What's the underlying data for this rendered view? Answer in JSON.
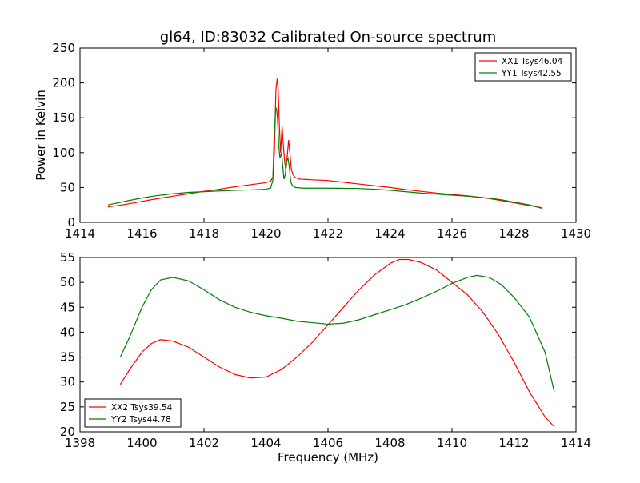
{
  "chart_data": [
    {
      "type": "line",
      "title": "gl64, ID:83032 Calibrated On-source spectrum",
      "xlabel": "",
      "ylabel": "Power in Kelvin",
      "xlim": [
        1414,
        1430
      ],
      "ylim": [
        0,
        250
      ],
      "xticks": [
        "1414",
        "1416",
        "1418",
        "1420",
        "1422",
        "1424",
        "1426",
        "1428",
        "1430"
      ],
      "yticks": [
        "0",
        "50",
        "100",
        "150",
        "200",
        "250"
      ],
      "legend": "top-right",
      "series": [
        {
          "name": "XX1 Tsys46.04",
          "color": "#ff0000",
          "points": [
            [
              1414.9,
              22
            ],
            [
              1415.5,
              26
            ],
            [
              1416,
              30
            ],
            [
              1416.5,
              34
            ],
            [
              1417,
              37.5
            ],
            [
              1417.5,
              41
            ],
            [
              1418,
              44.5
            ],
            [
              1418.5,
              47.5
            ],
            [
              1419,
              51
            ],
            [
              1419.5,
              54
            ],
            [
              1420,
              57
            ],
            [
              1420.15,
              59
            ],
            [
              1420.22,
              65
            ],
            [
              1420.27,
              100
            ],
            [
              1420.32,
              190
            ],
            [
              1420.36,
              206
            ],
            [
              1420.39,
              195
            ],
            [
              1420.43,
              140
            ],
            [
              1420.47,
              100
            ],
            [
              1420.52,
              138
            ],
            [
              1420.56,
              110
            ],
            [
              1420.6,
              88
            ],
            [
              1420.64,
              75
            ],
            [
              1420.68,
              92
            ],
            [
              1420.73,
              118
            ],
            [
              1420.77,
              100
            ],
            [
              1420.82,
              75
            ],
            [
              1420.88,
              68
            ],
            [
              1420.95,
              64
            ],
            [
              1421.1,
              62
            ],
            [
              1421.5,
              61
            ],
            [
              1422,
              60
            ],
            [
              1422.5,
              57.5
            ],
            [
              1423,
              55
            ],
            [
              1423.5,
              52.5
            ],
            [
              1424,
              50
            ],
            [
              1424.5,
              47
            ],
            [
              1425,
              44.5
            ],
            [
              1425.5,
              42
            ],
            [
              1426,
              40
            ],
            [
              1426.5,
              38
            ],
            [
              1427,
              35.5
            ],
            [
              1427.5,
              32
            ],
            [
              1428,
              28
            ],
            [
              1428.5,
              24
            ],
            [
              1428.9,
              21
            ]
          ]
        },
        {
          "name": "YY1 Tsys42.55",
          "color": "#008000",
          "points": [
            [
              1414.9,
              25
            ],
            [
              1415.5,
              30.5
            ],
            [
              1416,
              35
            ],
            [
              1416.5,
              38.5
            ],
            [
              1417,
              41
            ],
            [
              1417.5,
              43
            ],
            [
              1418,
              44
            ],
            [
              1418.5,
              45
            ],
            [
              1419,
              46
            ],
            [
              1419.5,
              46.5
            ],
            [
              1420,
              47.5
            ],
            [
              1420.15,
              49
            ],
            [
              1420.22,
              60
            ],
            [
              1420.26,
              120
            ],
            [
              1420.31,
              160
            ],
            [
              1420.34,
              163
            ],
            [
              1420.37,
              150
            ],
            [
              1420.41,
              110
            ],
            [
              1420.45,
              92
            ],
            [
              1420.5,
              100
            ],
            [
              1420.54,
              80
            ],
            [
              1420.58,
              62
            ],
            [
              1420.62,
              68
            ],
            [
              1420.67,
              88
            ],
            [
              1420.71,
              92
            ],
            [
              1420.75,
              80
            ],
            [
              1420.8,
              58
            ],
            [
              1420.86,
              52
            ],
            [
              1420.95,
              50
            ],
            [
              1421.2,
              49
            ],
            [
              1422,
              49
            ],
            [
              1423,
              48.5
            ],
            [
              1423.5,
              47.5
            ],
            [
              1424,
              46
            ],
            [
              1424.5,
              44
            ],
            [
              1425,
              42
            ],
            [
              1425.5,
              40.5
            ],
            [
              1426,
              39
            ],
            [
              1426.5,
              37.5
            ],
            [
              1427,
              35.5
            ],
            [
              1427.5,
              33
            ],
            [
              1428,
              29
            ],
            [
              1428.5,
              25
            ],
            [
              1428.9,
              20
            ]
          ]
        }
      ]
    },
    {
      "type": "line",
      "title": "",
      "xlabel": "Frequency (MHz)",
      "ylabel": "",
      "xlim": [
        1398,
        1414
      ],
      "ylim": [
        20,
        55
      ],
      "xticks": [
        "1398",
        "1400",
        "1402",
        "1404",
        "1406",
        "1408",
        "1410",
        "1412",
        "1414"
      ],
      "yticks": [
        "20",
        "25",
        "30",
        "35",
        "40",
        "45",
        "50",
        "55"
      ],
      "legend": "bottom-left",
      "series": [
        {
          "name": "XX2 Tsys39.54",
          "color": "#ff0000",
          "points": [
            [
              1399.3,
              29.5
            ],
            [
              1399.6,
              32.5
            ],
            [
              1400,
              36
            ],
            [
              1400.3,
              37.7
            ],
            [
              1400.6,
              38.5
            ],
            [
              1401,
              38.2
            ],
            [
              1401.5,
              37
            ],
            [
              1402,
              35
            ],
            [
              1402.5,
              33
            ],
            [
              1403,
              31.5
            ],
            [
              1403.5,
              30.8
            ],
            [
              1404,
              31
            ],
            [
              1404.5,
              32.5
            ],
            [
              1405,
              35
            ],
            [
              1405.5,
              38
            ],
            [
              1406,
              41.5
            ],
            [
              1406.5,
              45
            ],
            [
              1407,
              48.5
            ],
            [
              1407.5,
              51.5
            ],
            [
              1408,
              53.8
            ],
            [
              1408.3,
              54.6
            ],
            [
              1408.6,
              54.6
            ],
            [
              1409,
              54
            ],
            [
              1409.5,
              52.5
            ],
            [
              1410,
              50
            ],
            [
              1410.5,
              47.5
            ],
            [
              1411,
              44
            ],
            [
              1411.5,
              39.5
            ],
            [
              1412,
              34
            ],
            [
              1412.5,
              28
            ],
            [
              1413,
              23
            ],
            [
              1413.3,
              21
            ]
          ]
        },
        {
          "name": "YY2 Tsys44.78",
          "color": "#008000",
          "points": [
            [
              1399.3,
              35
            ],
            [
              1399.6,
              39
            ],
            [
              1400,
              45
            ],
            [
              1400.3,
              48.5
            ],
            [
              1400.6,
              50.5
            ],
            [
              1401,
              51
            ],
            [
              1401.5,
              50.3
            ],
            [
              1402,
              48.5
            ],
            [
              1402.5,
              46.5
            ],
            [
              1403,
              45
            ],
            [
              1403.5,
              44
            ],
            [
              1404,
              43.3
            ],
            [
              1404.5,
              42.8
            ],
            [
              1405,
              42.2
            ],
            [
              1405.5,
              41.9
            ],
            [
              1406,
              41.6
            ],
            [
              1406.5,
              41.8
            ],
            [
              1407,
              42.5
            ],
            [
              1407.5,
              43.5
            ],
            [
              1408,
              44.5
            ],
            [
              1408.5,
              45.5
            ],
            [
              1409,
              46.8
            ],
            [
              1409.5,
              48.2
            ],
            [
              1410,
              49.8
            ],
            [
              1410.5,
              51
            ],
            [
              1410.8,
              51.4
            ],
            [
              1411.2,
              51
            ],
            [
              1411.6,
              49.5
            ],
            [
              1412,
              47
            ],
            [
              1412.5,
              43
            ],
            [
              1413,
              36
            ],
            [
              1413.3,
              28
            ]
          ]
        }
      ]
    }
  ]
}
